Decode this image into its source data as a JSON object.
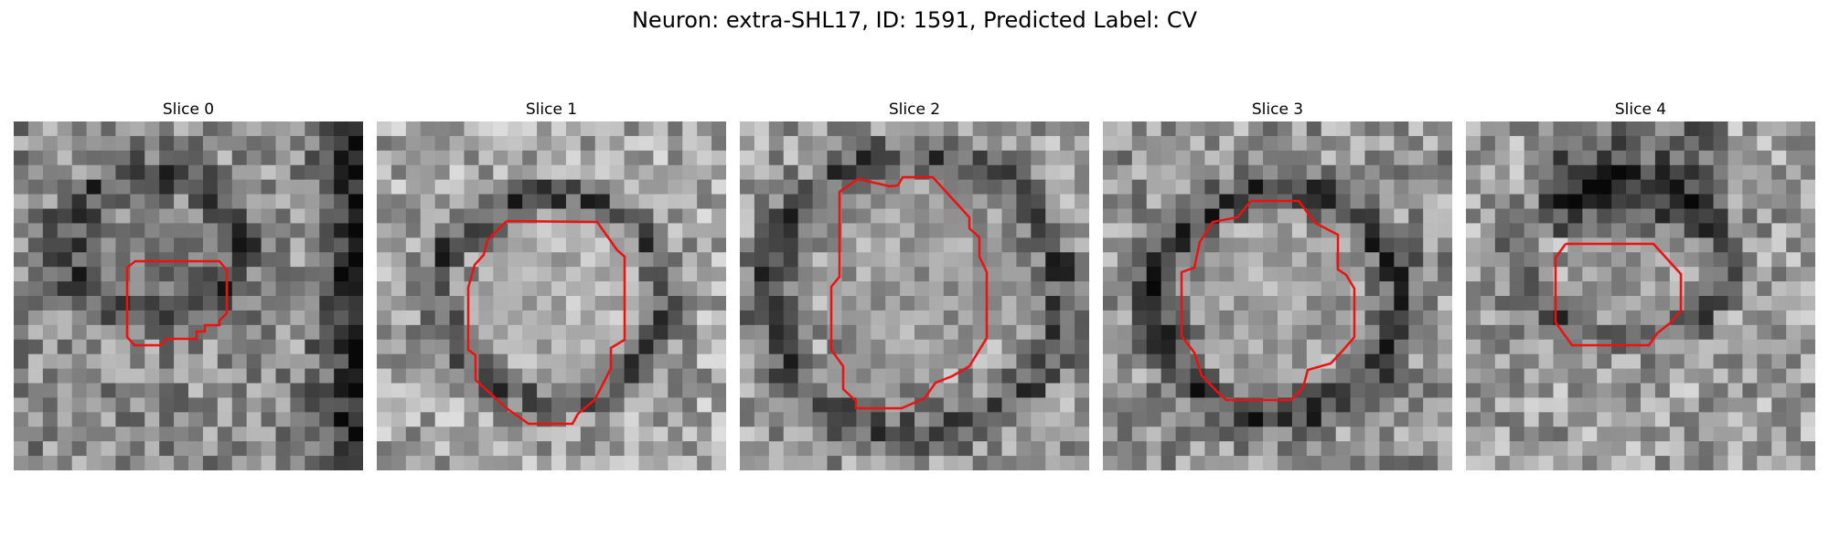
{
  "figure": {
    "title": "Neuron: extra-SHL17, ID: 1591, Predicted Label: CV",
    "outline_color": "#ee1111"
  },
  "slices": [
    {
      "title": "Slice 0",
      "seed": 11,
      "base": 0.55,
      "hole": 0.38,
      "blob": [
        0.4,
        0.43,
        0.18
      ],
      "ring": [
        0.4,
        0.35,
        0.25,
        0.2,
        -0.3
      ]
    },
    {
      "title": "Slice 1",
      "seed": 23,
      "base": 0.65,
      "hole": 0.72,
      "blob": [
        0.52,
        0.52,
        0.26
      ],
      "ring": [
        0.5,
        0.5,
        0.33,
        0.29,
        -0.35
      ]
    },
    {
      "title": "Slice 2",
      "seed": 37,
      "base": 0.6,
      "hole": 0.62,
      "blob": [
        0.5,
        0.45,
        0.28
      ],
      "ring": [
        0.5,
        0.5,
        0.42,
        0.4,
        -0.3
      ]
    },
    {
      "title": "Slice 3",
      "seed": 51,
      "base": 0.58,
      "hole": 0.7,
      "blob": [
        0.5,
        0.52,
        0.24
      ],
      "ring": [
        0.5,
        0.52,
        0.35,
        0.32,
        -0.35
      ]
    },
    {
      "title": "Slice 4",
      "seed": 67,
      "base": 0.62,
      "hole": 0.55,
      "blob": [
        0.43,
        0.52,
        0.16
      ],
      "ring": [
        0.45,
        0.4,
        0.3,
        0.22,
        -0.3
      ]
    }
  ]
}
